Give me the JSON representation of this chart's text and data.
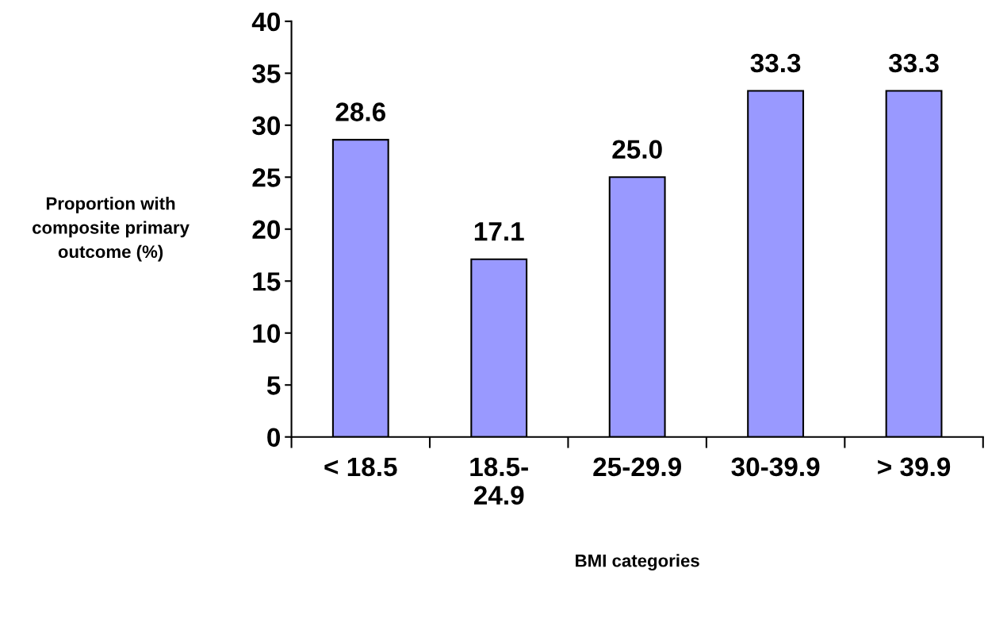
{
  "chart_data": {
    "type": "bar",
    "categories": [
      "< 18.5",
      "18.5-24.9",
      "25-29.9",
      "30-39.9",
      "> 39.9"
    ],
    "values": [
      28.6,
      17.1,
      25.0,
      33.3,
      33.3
    ],
    "value_labels": [
      "28.6",
      "17.1",
      "25.0",
      "33.3",
      "33.3"
    ],
    "color": "#9999ff",
    "ylabel": "Proportion with composite primary outcome (%)",
    "xlabel": "BMI categories",
    "ylim": [
      0,
      40
    ],
    "yticks": [
      0,
      5,
      10,
      15,
      20,
      25,
      30,
      35,
      40
    ],
    "grid": false
  }
}
